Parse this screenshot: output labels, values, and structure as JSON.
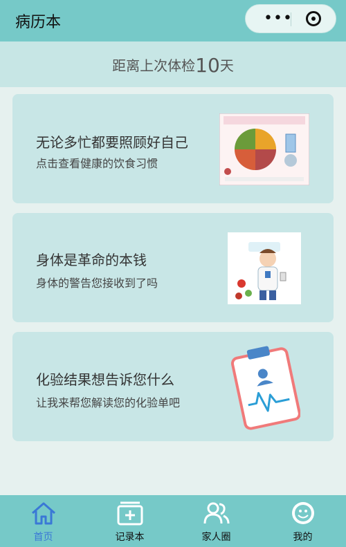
{
  "nav": {
    "title": "病历本"
  },
  "banner": {
    "prefix": "距离上次体检",
    "days": "10",
    "suffix": "天"
  },
  "cards": [
    {
      "title": "无论多忙都要照顾好自己",
      "subtitle": "点击查看健康的饮食习惯",
      "image_icon": "healthy-diet-plate-icon"
    },
    {
      "title": "身体是革命的本钱",
      "subtitle": "身体的警告您接收到了吗",
      "image_icon": "doctor-health-tips-icon"
    },
    {
      "title": "化验结果想告诉您什么",
      "subtitle": "让我来帮您解读您的化验单吧",
      "image_icon": "clipboard-report-icon"
    }
  ],
  "tabs": [
    {
      "label": "首页",
      "icon": "home-icon",
      "active": true
    },
    {
      "label": "记录本",
      "icon": "record-book-icon",
      "active": false
    },
    {
      "label": "家人圈",
      "icon": "family-circle-icon",
      "active": false
    },
    {
      "label": "我的",
      "icon": "profile-icon",
      "active": false
    }
  ],
  "colors": {
    "primary": "#76c9c8",
    "card_bg": "#c8e6e6",
    "active_tab": "#3a78d6"
  }
}
